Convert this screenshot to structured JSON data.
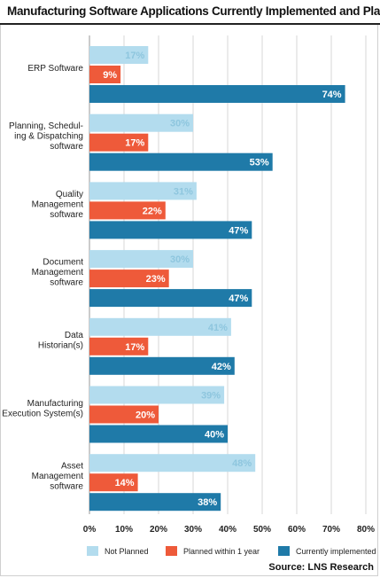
{
  "title": "Manufacturing Software Applications Currently Implemented and Plans",
  "source": "Source: LNS Research",
  "colors": {
    "not_planned": "#b3dcee",
    "planned": "#ee5a3a",
    "implemented": "#1f7aa8",
    "not_planned_label": "#8ec6de",
    "bar_label": "#ffffff"
  },
  "chart_data": {
    "type": "bar",
    "orientation": "horizontal",
    "title": "Manufacturing Software Applications Currently Implemented and Plans",
    "categories": [
      [
        "ERP Software"
      ],
      [
        "Planning, Schedul-",
        "ing & Dispatching",
        "software"
      ],
      [
        "Quality",
        "Management",
        "software"
      ],
      [
        "Document",
        "Management",
        "software"
      ],
      [
        "Data",
        "Historian(s)"
      ],
      [
        "Manufacturing",
        "Execution System(s)"
      ],
      [
        "Asset",
        "Management",
        "software"
      ]
    ],
    "series": [
      {
        "name": "Not Planned",
        "values": [
          17,
          30,
          31,
          30,
          41,
          39,
          48
        ]
      },
      {
        "name": "Planned within 1 year",
        "values": [
          9,
          17,
          22,
          23,
          17,
          20,
          14
        ]
      },
      {
        "name": "Currently implemented",
        "values": [
          74,
          53,
          47,
          47,
          42,
          40,
          38
        ]
      }
    ],
    "xlim": [
      0,
      80
    ],
    "xticks": [
      "0%",
      "10%",
      "20%",
      "30%",
      "40%",
      "50%",
      "60%",
      "70%",
      "80%"
    ],
    "legend_position": "bottom",
    "grid": true
  }
}
